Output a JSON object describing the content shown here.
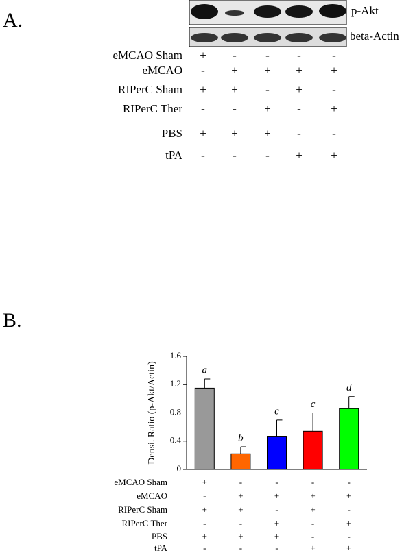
{
  "panel_a": {
    "label": "A.",
    "blot_labels": [
      "p-Akt",
      "beta-Actin"
    ],
    "conditions": [
      {
        "name": "eMCAO Sham",
        "marks": [
          "+",
          "-",
          "-",
          "-",
          "-"
        ]
      },
      {
        "name": "eMCAO",
        "marks": [
          "-",
          "+",
          "+",
          "+",
          "+"
        ]
      },
      {
        "name": "RIPerC Sham",
        "marks": [
          "+",
          "+",
          "-",
          "+",
          "-"
        ]
      },
      {
        "name": "RIPerC Ther",
        "marks": [
          "-",
          "-",
          "+",
          "-",
          "+"
        ]
      },
      {
        "name": "PBS",
        "marks": [
          "+",
          "+",
          "+",
          "-",
          "-"
        ]
      },
      {
        "name": "tPA",
        "marks": [
          "-",
          "-",
          "-",
          "+",
          "+"
        ]
      }
    ]
  },
  "panel_b": {
    "label": "B."
  },
  "chart_data": {
    "type": "bar",
    "ylabel": "Densi. Ratio (p-Akt/Actin)",
    "values": [
      1.15,
      0.22,
      0.47,
      0.54,
      0.86
    ],
    "errors": [
      0.13,
      0.1,
      0.23,
      0.26,
      0.17
    ],
    "annotations": [
      "a",
      "b",
      "c",
      "c",
      "d"
    ],
    "colors": [
      "#999999",
      "#ff6600",
      "#0000ff",
      "#ff0000",
      "#00ff00"
    ],
    "ylim": [
      0,
      1.6
    ],
    "yticks": [
      0,
      0.4,
      0.8,
      1.2,
      1.6
    ],
    "conditions": [
      {
        "name": "eMCAO Sham",
        "marks": [
          "+",
          "-",
          "-",
          "-",
          "-"
        ]
      },
      {
        "name": "eMCAO",
        "marks": [
          "-",
          "+",
          "+",
          "+",
          "+"
        ]
      },
      {
        "name": "RIPerC Sham",
        "marks": [
          "+",
          "+",
          "-",
          "+",
          "-"
        ]
      },
      {
        "name": "RIPerC Ther",
        "marks": [
          "-",
          "-",
          "+",
          "-",
          "+"
        ]
      },
      {
        "name": "PBS",
        "marks": [
          "+",
          "+",
          "+",
          "-",
          "-"
        ]
      },
      {
        "name": "tPA",
        "marks": [
          "-",
          "-",
          "-",
          "+",
          "+"
        ]
      }
    ]
  }
}
